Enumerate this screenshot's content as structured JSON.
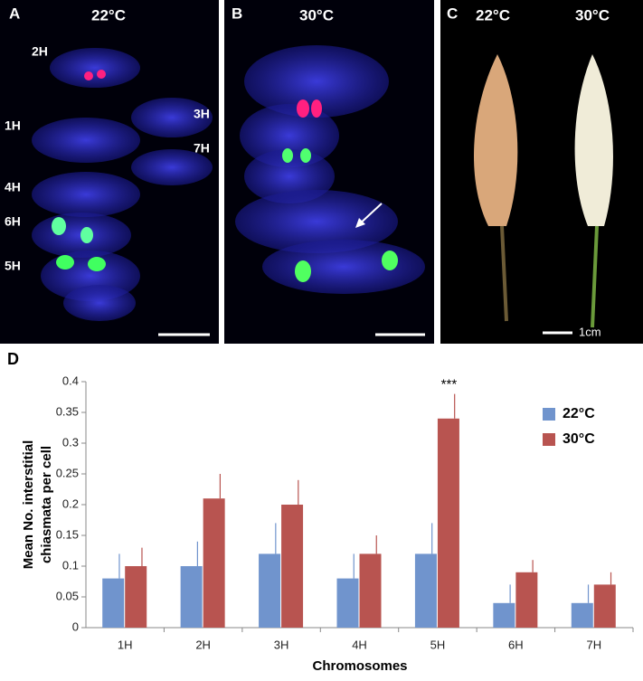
{
  "panels": [
    {
      "letter": "A",
      "temperature": "22°C",
      "labels": [
        "2H",
        "1H",
        "3H",
        "7H",
        "4H",
        "6H",
        "5H"
      ]
    },
    {
      "letter": "B",
      "temperature": "30°C"
    },
    {
      "letter": "C",
      "temperatures": [
        "22°C",
        "30°C"
      ],
      "scale": "1cm"
    }
  ],
  "chart_data": {
    "type": "bar",
    "letter": "D",
    "categories": [
      "1H",
      "2H",
      "3H",
      "4H",
      "5H",
      "6H",
      "7H"
    ],
    "series": [
      {
        "name": "22°C",
        "color": "#7094cd",
        "values": [
          0.08,
          0.1,
          0.12,
          0.08,
          0.12,
          0.04,
          0.04
        ],
        "errors": [
          0.04,
          0.04,
          0.05,
          0.04,
          0.05,
          0.03,
          0.03
        ]
      },
      {
        "name": "30°C",
        "color": "#b85450",
        "values": [
          0.1,
          0.21,
          0.2,
          0.12,
          0.34,
          0.09,
          0.07
        ],
        "errors": [
          0.03,
          0.04,
          0.04,
          0.03,
          0.04,
          0.02,
          0.02
        ]
      }
    ],
    "ylim": [
      0,
      0.4
    ],
    "yticks": [
      0,
      0.05,
      0.1,
      0.15,
      0.2,
      0.25,
      0.3,
      0.35,
      0.4
    ],
    "ylabel": [
      "Mean No. interstitial",
      "chiasmata   per cell"
    ],
    "xlabel": "Chromosomes",
    "annotation": {
      "text": "***",
      "category": 4,
      "series": 1
    },
    "legend": "upper right"
  }
}
